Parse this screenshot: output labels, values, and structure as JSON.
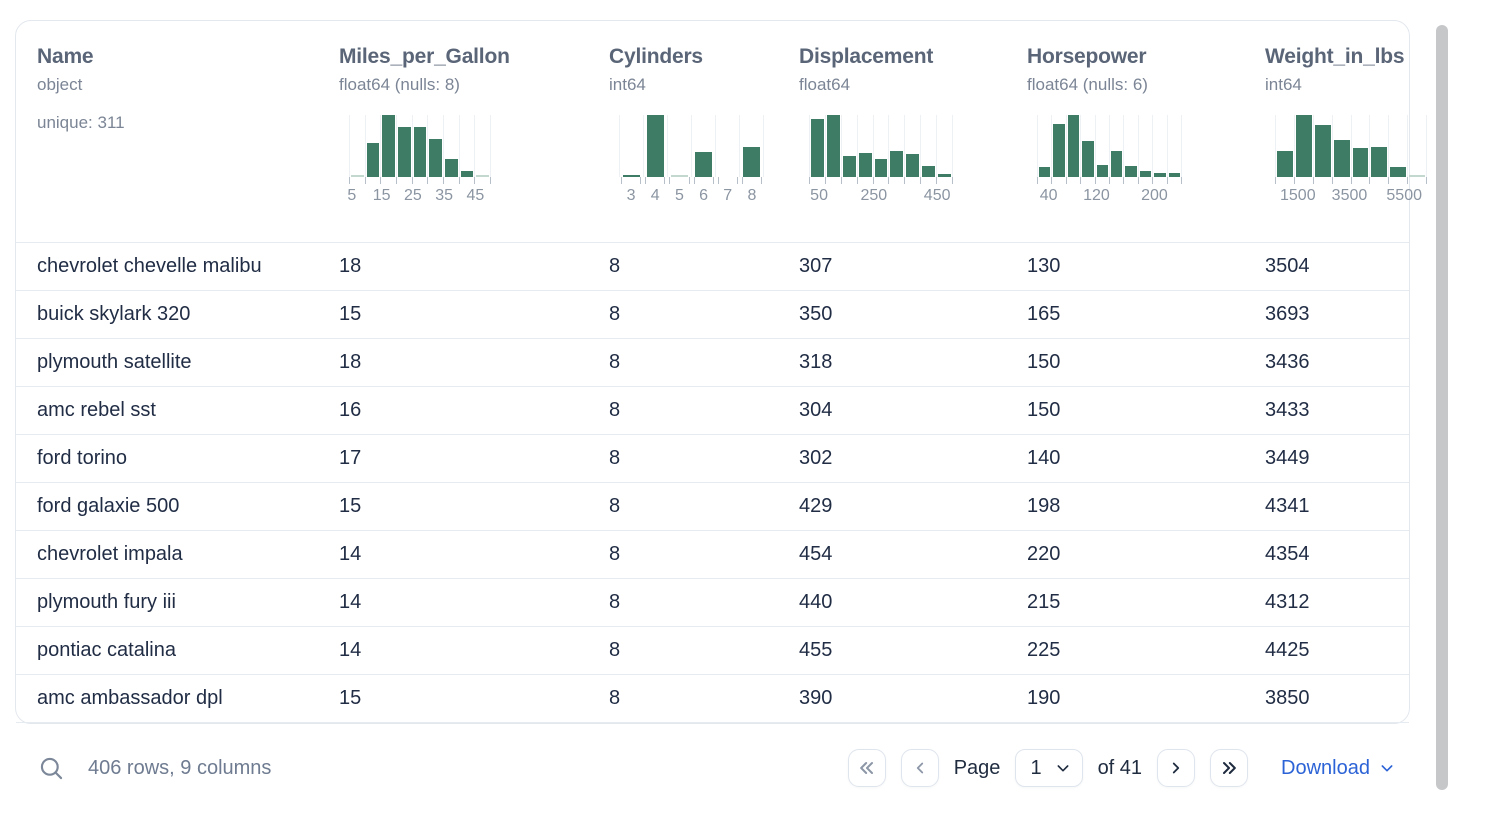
{
  "table": {
    "columns": [
      {
        "name": "Name",
        "type": "object",
        "summary": "unique: 311",
        "histogram": null
      },
      {
        "name": "Miles_per_Gallon",
        "type": "float64 (nulls: 8)",
        "histogram": {
          "width": 142,
          "gapped": false,
          "heights": [
            0.03,
            0.55,
            1.0,
            0.8,
            0.8,
            0.61,
            0.29,
            0.1,
            0.03
          ],
          "light_bins": [
            0,
            8
          ],
          "labels": [
            {
              "text": "5",
              "frac": 0.02
            },
            {
              "text": "15",
              "frac": 0.23
            },
            {
              "text": "25",
              "frac": 0.45
            },
            {
              "text": "35",
              "frac": 0.67
            },
            {
              "text": "45",
              "frac": 0.89
            }
          ]
        }
      },
      {
        "name": "Cylinders",
        "type": "int64",
        "histogram": {
          "width": 145,
          "gapped": true,
          "heights": [
            0.03,
            1.0,
            0.02,
            0.4,
            0,
            0.48
          ],
          "light_bins": [
            2
          ],
          "labels": [
            {
              "text": "3",
              "frac": 0.083
            },
            {
              "text": "4",
              "frac": 0.25
            },
            {
              "text": "5",
              "frac": 0.417
            },
            {
              "text": "6",
              "frac": 0.583
            },
            {
              "text": "7",
              "frac": 0.75
            },
            {
              "text": "8",
              "frac": 0.917
            }
          ]
        }
      },
      {
        "name": "Displacement",
        "type": "float64",
        "histogram": {
          "width": 144,
          "gapped": false,
          "heights": [
            0.94,
            1.0,
            0.34,
            0.39,
            0.29,
            0.42,
            0.37,
            0.18,
            0.05
          ],
          "light_bins": [],
          "labels": [
            {
              "text": "50",
              "frac": 0.07
            },
            {
              "text": "250",
              "frac": 0.45
            },
            {
              "text": "450",
              "frac": 0.89
            }
          ]
        }
      },
      {
        "name": "Horsepower",
        "type": "float64 (nulls: 6)",
        "histogram": {
          "width": 145,
          "gapped": false,
          "heights": [
            0.16,
            0.85,
            1.0,
            0.58,
            0.19,
            0.42,
            0.18,
            0.1,
            0.06,
            0.06
          ],
          "light_bins": [],
          "labels": [
            {
              "text": "40",
              "frac": 0.08
            },
            {
              "text": "120",
              "frac": 0.41
            },
            {
              "text": "200",
              "frac": 0.81
            }
          ]
        }
      },
      {
        "name": "Weight_in_lbs",
        "type": "int64",
        "histogram": {
          "width": 152,
          "gapped": false,
          "heights": [
            0.42,
            1.0,
            0.84,
            0.6,
            0.47,
            0.48,
            0.16,
            0.02
          ],
          "light_bins": [
            7
          ],
          "labels": [
            {
              "text": "1500",
              "frac": 0.15
            },
            {
              "text": "3500",
              "frac": 0.49
            },
            {
              "text": "5500",
              "frac": 0.85
            }
          ]
        }
      }
    ],
    "rows": [
      [
        "chevrolet chevelle malibu",
        "18",
        "8",
        "307",
        "130",
        "3504"
      ],
      [
        "buick skylark 320",
        "15",
        "8",
        "350",
        "165",
        "3693"
      ],
      [
        "plymouth satellite",
        "18",
        "8",
        "318",
        "150",
        "3436"
      ],
      [
        "amc rebel sst",
        "16",
        "8",
        "304",
        "150",
        "3433"
      ],
      [
        "ford torino",
        "17",
        "8",
        "302",
        "140",
        "3449"
      ],
      [
        "ford galaxie 500",
        "15",
        "8",
        "429",
        "198",
        "4341"
      ],
      [
        "chevrolet impala",
        "14",
        "8",
        "454",
        "220",
        "4354"
      ],
      [
        "plymouth fury iii",
        "14",
        "8",
        "440",
        "215",
        "4312"
      ],
      [
        "pontiac catalina",
        "14",
        "8",
        "455",
        "225",
        "4425"
      ],
      [
        "amc ambassador dpl",
        "15",
        "8",
        "390",
        "190",
        "3850"
      ]
    ]
  },
  "footer": {
    "row_count_label": "406 rows, 9 columns",
    "page_label": "Page",
    "page_value": "1",
    "of_label": "of 41",
    "download_label": "Download"
  },
  "colors": {
    "histogram_bar": "#3e7c65",
    "histogram_bar_light": "#c3d9d0",
    "accent_blue": "#2c63d6",
    "header_text": "#5a6578",
    "secondary_text": "#7b8595",
    "cell_text": "#212d45",
    "muted_text": "#6e7b90"
  }
}
